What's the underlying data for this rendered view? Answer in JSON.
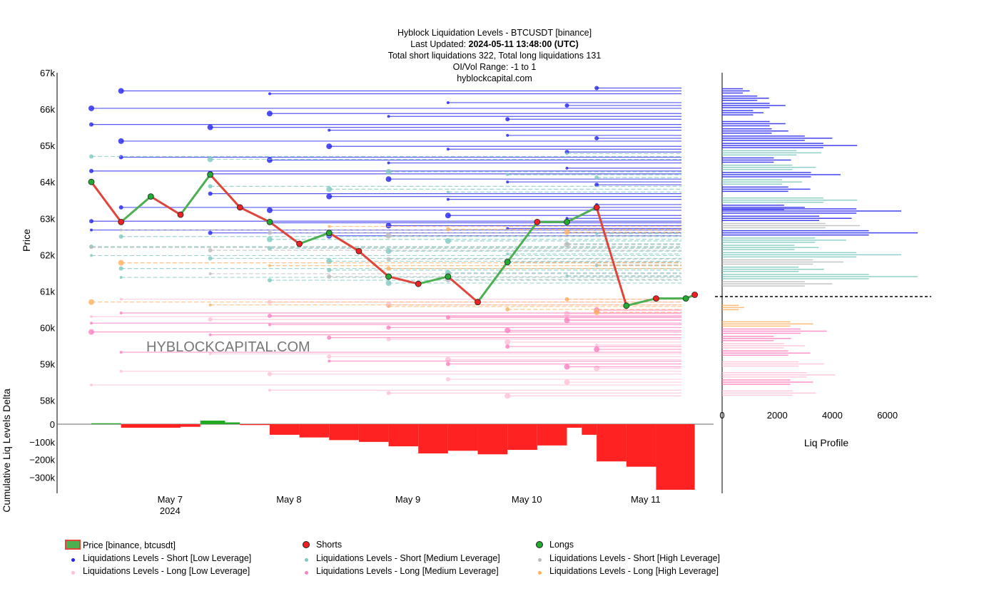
{
  "title": {
    "line1": "Hyblock Liquidation Levels - BTCUSDT [binance]",
    "line2_prefix": "Last Updated: ",
    "line2_value": "2024-05-11 13:48:00 (UTC)",
    "line3": "Total short liquidations 322, Total long liquidations 131",
    "line4": "OI/Vol Range: -1 to 1",
    "line5": "hyblockcapital.com"
  },
  "watermark": "HYBLOCKCAPITAL.COM",
  "colors": {
    "short_low": "#2222ee",
    "short_medium": "#7ec8c0",
    "short_high": "#bbbbbb",
    "long_low": "#ffc0d8",
    "long_medium": "#ff80c0",
    "long_high": "#ffb060",
    "candle_up": "#4caf50",
    "candle_down": "#e0443a",
    "shorts_marker": "#ee2222",
    "longs_marker": "#22aa33",
    "delta_neg": "#ff2222",
    "delta_pos": "#22aa22"
  },
  "chart_data": [
    {
      "type": "line",
      "title": "Hyblock Liquidation Levels - BTCUSDT [binance]",
      "ylabel": "Price",
      "ylim": [
        57600,
        67000
      ],
      "yticks": [
        "58k",
        "59k",
        "60k",
        "61k",
        "62k",
        "63k",
        "64k",
        "65k",
        "66k",
        "67k"
      ],
      "ytick_values": [
        58000,
        59000,
        60000,
        61000,
        62000,
        63000,
        64000,
        65000,
        66000,
        67000
      ],
      "xticks": [
        "May 7",
        "May 8",
        "May 9",
        "May 10",
        "May 11"
      ],
      "xtick_sub": "2024",
      "xlim_days": [
        "2024-05-06T12:00",
        "2024-05-11T14:00"
      ],
      "price_series": {
        "name": "Price [binance, btcusdt]",
        "x": [
          "05-06 12:00",
          "05-06 18:00",
          "05-07 00:00",
          "05-07 06:00",
          "05-07 12:00",
          "05-07 18:00",
          "05-08 00:00",
          "05-08 06:00",
          "05-08 12:00",
          "05-08 18:00",
          "05-09 00:00",
          "05-09 06:00",
          "05-09 12:00",
          "05-09 18:00",
          "05-10 00:00",
          "05-10 06:00",
          "05-10 12:00",
          "05-10 18:00",
          "05-11 00:00",
          "05-11 06:00",
          "05-11 12:00",
          "05-11 13:48"
        ],
        "y": [
          64000,
          62900,
          63600,
          63100,
          64200,
          63300,
          62900,
          62300,
          62600,
          62100,
          61400,
          61200,
          61400,
          60700,
          61800,
          62900,
          62900,
          63300,
          60600,
          60800,
          60800,
          60900
        ]
      },
      "series": [
        {
          "name": "Liquidations Levels - Short [Low Leverage]",
          "levels": [
            62600,
            62800,
            63000,
            63300,
            63600,
            64000,
            64300,
            64600,
            64900,
            65200,
            65500,
            65800,
            66100,
            66500
          ]
        },
        {
          "name": "Liquidations Levels - Short [Medium Leverage]",
          "levels": [
            61300,
            61500,
            61700,
            61900,
            62100,
            62300,
            62500,
            63800,
            64200,
            64700
          ]
        },
        {
          "name": "Liquidations Levels - Short [High Leverage]",
          "levels": [
            61400,
            61800,
            62200,
            62600
          ]
        },
        {
          "name": "Liquidations Levels - Long [Low Leverage]",
          "levels": [
            58200,
            58500,
            58800,
            59200,
            59600,
            60300,
            60700
          ]
        },
        {
          "name": "Liquidations Levels - Long [Medium Leverage]",
          "levels": [
            59000,
            59400,
            59800,
            60000,
            60200,
            60400
          ]
        },
        {
          "name": "Liquidations Levels - Long [High Leverage]",
          "levels": [
            60500,
            60700,
            61700,
            62700
          ]
        }
      ]
    },
    {
      "type": "area",
      "ylabel": "Cumulative Liq Levels Delta",
      "ylim": [
        -390000,
        20000
      ],
      "yticks": [
        "0",
        "−100k",
        "−200k",
        "−300k"
      ],
      "ytick_values": [
        0,
        -100000,
        -200000,
        -300000
      ],
      "x": [
        "05-06 12:00",
        "05-06 18:00",
        "05-07 06:00",
        "05-07 10:00",
        "05-07 15:00",
        "05-07 18:00",
        "05-08 00:00",
        "05-08 06:00",
        "05-08 12:00",
        "05-08 18:00",
        "05-09 00:00",
        "05-09 06:00",
        "05-09 12:00",
        "05-09 18:00",
        "05-10 00:00",
        "05-10 06:00",
        "05-10 12:00",
        "05-10 15:00",
        "05-10 18:00",
        "05-11 00:00",
        "05-11 06:00",
        "05-11 13:48"
      ],
      "values": [
        5000,
        -20000,
        -15000,
        20000,
        10000,
        -5000,
        -60000,
        -75000,
        -90000,
        -100000,
        -125000,
        -165000,
        -150000,
        -170000,
        -145000,
        -120000,
        -20000,
        -60000,
        -210000,
        -240000,
        -370000,
        -375000
      ]
    },
    {
      "type": "bar",
      "orientation": "horizontal",
      "xlabel": "Liq Profile",
      "xticks": [
        "0",
        "2000",
        "4000",
        "6000"
      ],
      "xtick_values": [
        0,
        2000,
        4000,
        6000
      ],
      "current_price": 60850,
      "bars": [
        {
          "price": 66500,
          "value": 1000,
          "group": "short_low"
        },
        {
          "price": 66300,
          "value": 1700,
          "group": "short_low"
        },
        {
          "price": 66100,
          "value": 2300,
          "group": "short_low"
        },
        {
          "price": 65900,
          "value": 1500,
          "group": "short_low"
        },
        {
          "price": 65600,
          "value": 2300,
          "group": "short_low"
        },
        {
          "price": 65400,
          "value": 2400,
          "group": "short_low"
        },
        {
          "price": 65200,
          "value": 4000,
          "group": "short_low"
        },
        {
          "price": 65000,
          "value": 4900,
          "group": "short_low"
        },
        {
          "price": 64800,
          "value": 3600,
          "group": "short_medium"
        },
        {
          "price": 64600,
          "value": 2500,
          "group": "short_low"
        },
        {
          "price": 64400,
          "value": 3400,
          "group": "short_medium"
        },
        {
          "price": 64200,
          "value": 4300,
          "group": "short_low"
        },
        {
          "price": 64000,
          "value": 2900,
          "group": "short_medium"
        },
        {
          "price": 63800,
          "value": 3200,
          "group": "short_low"
        },
        {
          "price": 63500,
          "value": 4900,
          "group": "short_medium"
        },
        {
          "price": 63300,
          "value": 3000,
          "group": "short_low"
        },
        {
          "price": 63200,
          "value": 6500,
          "group": "short_low"
        },
        {
          "price": 63000,
          "value": 4700,
          "group": "short_low"
        },
        {
          "price": 62800,
          "value": 5000,
          "group": "short_high"
        },
        {
          "price": 62600,
          "value": 7100,
          "group": "short_low"
        },
        {
          "price": 62400,
          "value": 4500,
          "group": "short_medium"
        },
        {
          "price": 62200,
          "value": 3500,
          "group": "short_medium"
        },
        {
          "price": 62000,
          "value": 6500,
          "group": "short_medium"
        },
        {
          "price": 61800,
          "value": 4400,
          "group": "short_high"
        },
        {
          "price": 61600,
          "value": 3700,
          "group": "short_medium"
        },
        {
          "price": 61400,
          "value": 7100,
          "group": "short_medium"
        },
        {
          "price": 61200,
          "value": 4000,
          "group": "short_high"
        },
        {
          "price": 60550,
          "value": 800,
          "group": "long_high"
        },
        {
          "price": 60100,
          "value": 3300,
          "group": "long_high"
        },
        {
          "price": 59900,
          "value": 3800,
          "group": "long_medium"
        },
        {
          "price": 59700,
          "value": 2500,
          "group": "long_medium"
        },
        {
          "price": 59500,
          "value": 3000,
          "group": "long_low"
        },
        {
          "price": 59300,
          "value": 3200,
          "group": "long_medium"
        },
        {
          "price": 59000,
          "value": 3700,
          "group": "long_low"
        },
        {
          "price": 58700,
          "value": 4100,
          "group": "long_low"
        },
        {
          "price": 58500,
          "value": 3300,
          "group": "long_medium"
        },
        {
          "price": 58200,
          "value": 3400,
          "group": "long_low"
        }
      ]
    }
  ],
  "legend": [
    {
      "label": "Price [binance, btcusdt]",
      "kind": "candle"
    },
    {
      "label": "Shorts",
      "kind": "short-marker"
    },
    {
      "label": "Longs",
      "kind": "long-marker"
    },
    {
      "label": "Liquidations Levels - Short [Low Leverage]",
      "kind": "short_low"
    },
    {
      "label": "Liquidations Levels - Short [Medium Leverage]",
      "kind": "short_medium"
    },
    {
      "label": "Liquidations Levels - Short [High Leverage]",
      "kind": "short_high"
    },
    {
      "label": "Liquidations Levels - Long [Low Leverage]",
      "kind": "long_low"
    },
    {
      "label": "Liquidations Levels - Long [Medium Leverage]",
      "kind": "long_medium"
    },
    {
      "label": "Liquidations Levels - Long [High Leverage]",
      "kind": "long_high"
    }
  ]
}
